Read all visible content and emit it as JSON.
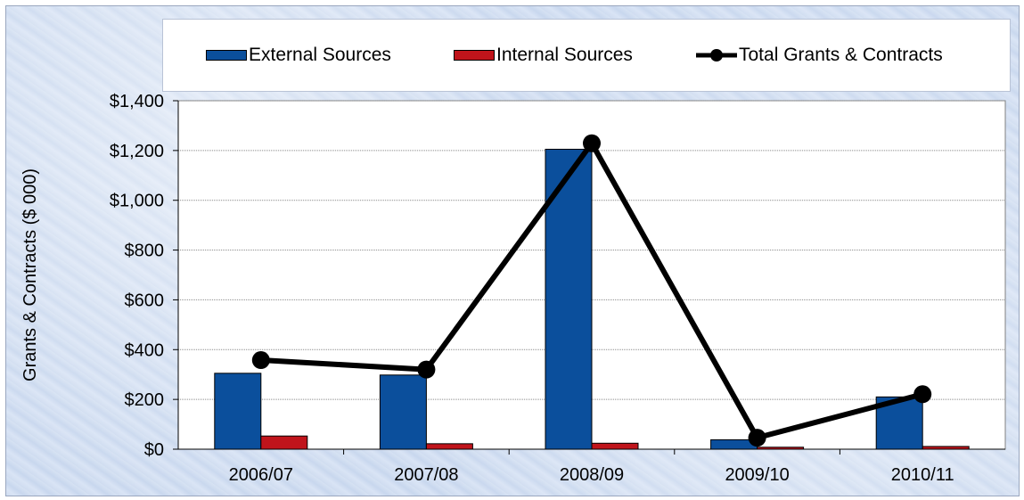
{
  "chart_data": {
    "type": "bar",
    "categories": [
      "2006/07",
      "2007/08",
      "2008/09",
      "2009/10",
      "2010/11"
    ],
    "series": [
      {
        "name": "External Sources",
        "kind": "bar",
        "color": "#0b4f9c",
        "values": [
          305,
          298,
          1205,
          38,
          210
        ]
      },
      {
        "name": "Internal Sources",
        "kind": "bar",
        "color": "#c0141b",
        "values": [
          53,
          22,
          24,
          8,
          11
        ]
      },
      {
        "name": "Total Grants & Contracts",
        "kind": "line",
        "color": "#000000",
        "values": [
          358,
          320,
          1229,
          46,
          221
        ]
      }
    ],
    "ylabel": "Grants & Contracts ($ 000)",
    "ylim": [
      0,
      1400
    ],
    "yticks": [
      0,
      200,
      400,
      600,
      800,
      1000,
      1200,
      1400
    ],
    "ytick_labels": [
      "$0",
      "$200",
      "$400",
      "$600",
      "$800",
      "$1,000",
      "$1,200",
      "$1,400"
    ],
    "grid": "horizontal",
    "legend_position": "top"
  }
}
